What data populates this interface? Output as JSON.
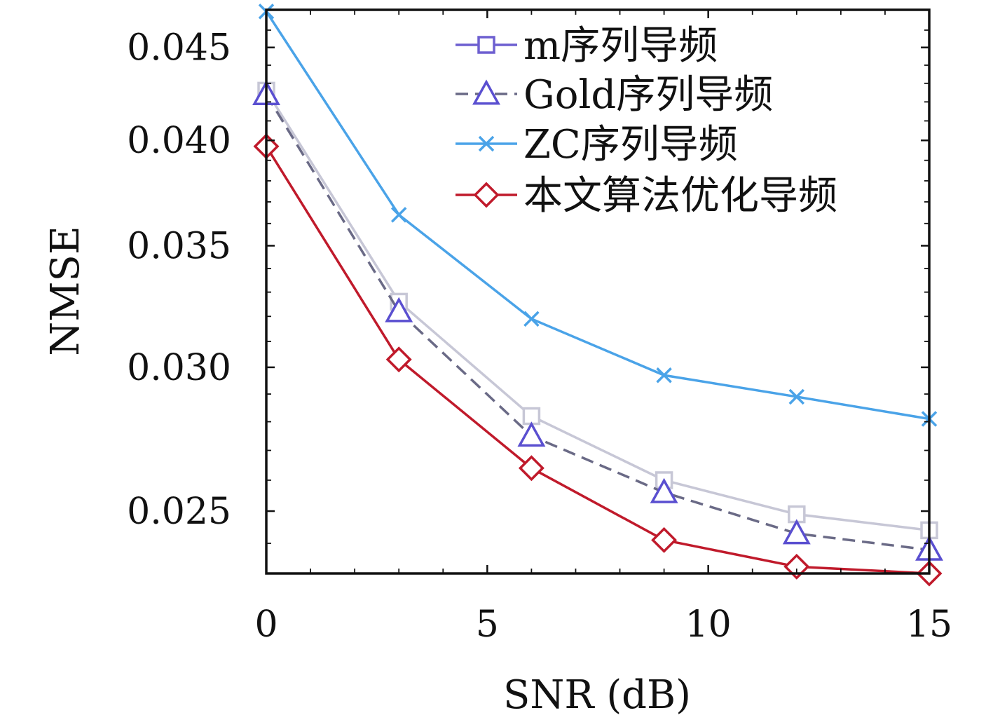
{
  "chart_data": {
    "type": "line",
    "title": "",
    "xlabel": "SNR (dB)",
    "ylabel": "NMSE",
    "xlim": [
      0,
      15
    ],
    "ylim": [
      0.0231,
      0.0472
    ],
    "x_ticks": [
      0,
      5,
      10,
      15
    ],
    "y_ticks": [
      0.025,
      0.03,
      0.035,
      0.04,
      0.045
    ],
    "x_tick_labels": [
      "0",
      "5",
      "10",
      "15"
    ],
    "y_tick_labels": [
      "0.025",
      "0.030",
      "0.035",
      "0.040",
      "0.045"
    ],
    "y_scale": "log",
    "grid": false,
    "legend": "top-right",
    "x": [
      0,
      3,
      6,
      9,
      12,
      15
    ],
    "series": [
      {
        "name": "m序列导频",
        "values": [
          0.0426,
          0.0326,
          0.0282,
          0.026,
          0.0249,
          0.0244
        ],
        "color": "#c7c7d6",
        "legend_color": "#6d5fd0",
        "marker": "square",
        "dash": "solid"
      },
      {
        "name": "Gold序列导频",
        "values": [
          0.0424,
          0.0322,
          0.0275,
          0.0256,
          0.0243,
          0.0238
        ],
        "color": "#6a6a86",
        "legend_color": "#6a6a86",
        "marker_color": "#5a4fd0",
        "marker": "triangle",
        "dash": "dashed"
      },
      {
        "name": "ZC序列导频",
        "values": [
          0.0471,
          0.0364,
          0.0319,
          0.0297,
          0.0289,
          0.0281
        ],
        "color": "#4aa3e8",
        "legend_color": "#4aa3e8",
        "marker": "x",
        "dash": "solid"
      },
      {
        "name": "本文算法优化导频",
        "values": [
          0.0397,
          0.0303,
          0.0264,
          0.0241,
          0.0233,
          0.0231
        ],
        "color": "#c01a2b",
        "legend_color": "#c01a2b",
        "marker": "diamond",
        "dash": "solid"
      }
    ]
  }
}
